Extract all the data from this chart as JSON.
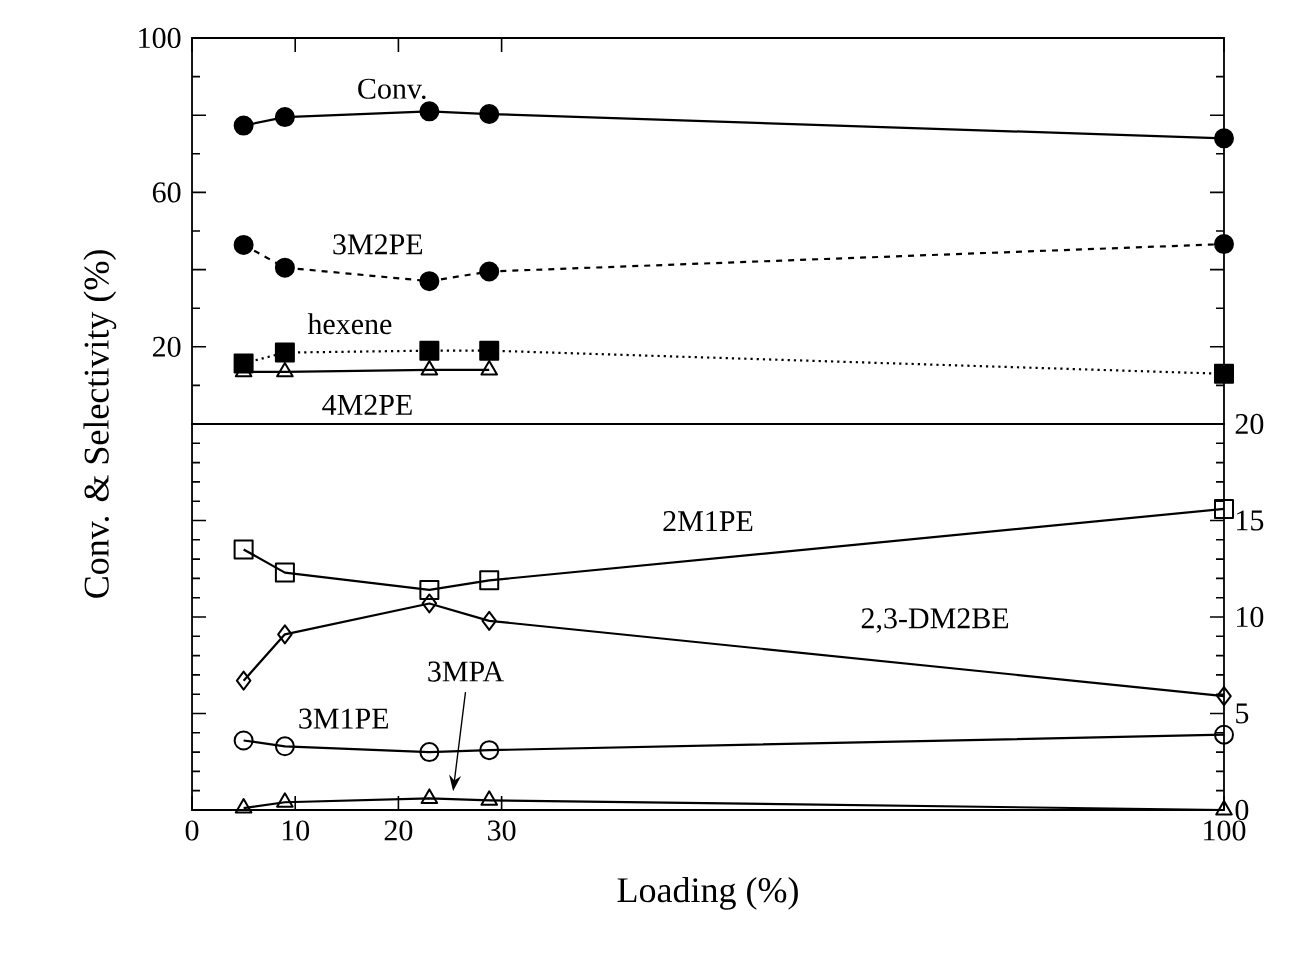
{
  "chart_data": [
    {
      "type": "line",
      "ylabel": "Conv. & Selectivity (%)",
      "xlim": [
        0,
        100
      ],
      "xticks": [
        0,
        10,
        20,
        30,
        100
      ],
      "ylim": [
        0,
        100
      ],
      "yticks": [
        {
          "value": 0,
          "label": null
        },
        20,
        {
          "value": 40,
          "label": null
        },
        60,
        {
          "value": 80,
          "label": null
        },
        100
      ],
      "tick_labels": "y",
      "x": [
        5,
        9,
        23,
        28.8,
        100
      ],
      "series": [
        {
          "name": "Conv.",
          "color": "#000000",
          "marker": "circle",
          "line_style": "solid",
          "values": [
            77.3,
            79.5,
            81,
            80.3,
            74
          ]
        },
        {
          "name": "3M2PE",
          "color": "#000000",
          "marker": "circle",
          "line_style": "dashed",
          "values": [
            46.4,
            40.5,
            37,
            39.5,
            46.6
          ]
        },
        {
          "name": "hexene",
          "color": "#000000",
          "marker": "square",
          "line_style": "dotted",
          "values": [
            15.7,
            18.5,
            19,
            19,
            13
          ]
        },
        {
          "name": "4M2PE",
          "color": "#000000",
          "marker": "triangle",
          "line_style": "solid",
          "values": [
            13.5,
            13.5,
            14,
            14,
            null
          ]
        }
      ]
    },
    {
      "type": "line",
      "xlabel": "Loading (%)",
      "xlim": [
        0,
        100
      ],
      "xticks": [
        0,
        10,
        20,
        30,
        100
      ],
      "ylim": [
        0,
        20
      ],
      "yticks": [
        0,
        5,
        10,
        15,
        20
      ],
      "x": [
        5,
        9,
        23,
        28.8,
        100
      ],
      "series": [
        {
          "name": "2M1PE",
          "color": "#000000",
          "marker": "square",
          "line_style": "solid",
          "values": [
            13.5,
            12.3,
            11.4,
            11.9,
            15.6
          ]
        },
        {
          "name": "2,3-DM2BE",
          "color": "#000000",
          "marker": "diamond",
          "line_style": "solid",
          "values": [
            6.7,
            9.1,
            10.7,
            9.8,
            5.9
          ]
        },
        {
          "name": "3M1PE",
          "color": "#000000",
          "marker": "circle",
          "line_style": "solid",
          "values": [
            3.6,
            3.3,
            3.0,
            3.1,
            3.9
          ]
        },
        {
          "name": "3MPA",
          "color": "#000000",
          "marker": "triangle",
          "line_style": "solid",
          "values": [
            0.1,
            0.4,
            0.6,
            0.5,
            0
          ]
        }
      ]
    }
  ]
}
